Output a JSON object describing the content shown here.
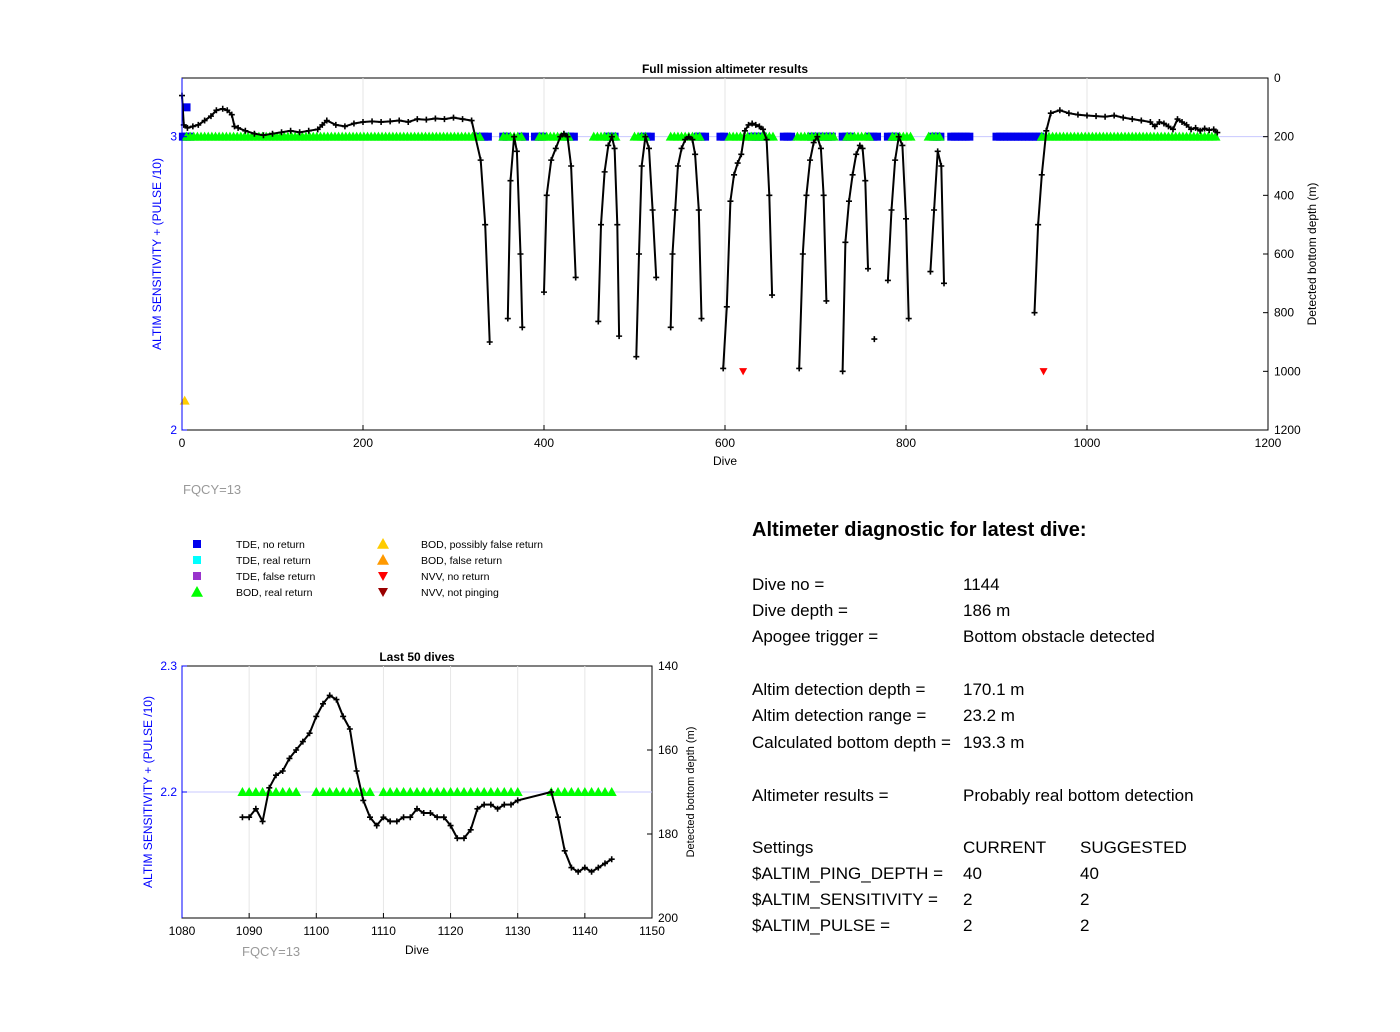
{
  "colors": {
    "blue_axis": "#0000ff",
    "black": "#000000",
    "tde_no_return": "#0000ee",
    "tde_real_return": "#00ffff",
    "tde_false_return": "#9933cc",
    "bod_real_return": "#00ff00",
    "bod_possibly_false": "#ffcc00",
    "bod_false": "#ff9900",
    "nvv_no_return": "#ff0000",
    "nvv_not_pinging": "#990000",
    "fqcy_gray": "#999999",
    "grid": "#e6e6e6",
    "ref_line": "#c8c8ff"
  },
  "main": {
    "fqcy_label": "FQCY=13"
  },
  "legend": [
    {
      "label": "TDE, no return",
      "marker": "square",
      "color": "tde_no_return"
    },
    {
      "label": "TDE, real return",
      "marker": "square",
      "color": "tde_real_return"
    },
    {
      "label": "TDE, false return",
      "marker": "square",
      "color": "tde_false_return"
    },
    {
      "label": "BOD, real return",
      "marker": "triangle-up",
      "color": "bod_real_return"
    },
    {
      "label": "BOD, possibly false return",
      "marker": "triangle-up",
      "color": "bod_possibly_false"
    },
    {
      "label": "BOD, false return",
      "marker": "triangle-up",
      "color": "bod_false"
    },
    {
      "label": "NVV, no return",
      "marker": "triangle-down",
      "color": "nvv_no_return"
    },
    {
      "label": "NVV, not pinging",
      "marker": "triangle-down",
      "color": "nvv_not_pinging"
    }
  ],
  "inset": {
    "fqcy_label": "FQCY=13"
  },
  "diagnostic": {
    "heading": "Altimeter diagnostic for latest dive:",
    "dive_no_label": "Dive no =",
    "dive_no_value": "1144",
    "dive_depth_label": "Dive depth =",
    "dive_depth_value": "186 m",
    "apogee_label": "Apogee trigger =",
    "apogee_value": "Bottom obstacle detected",
    "det_depth_label": "Altim detection depth =",
    "det_depth_value": "170.1 m",
    "det_range_label": "Altim detection range =",
    "det_range_value": "23.2 m",
    "calc_depth_label": "Calculated bottom depth =",
    "calc_depth_value": "193.3 m",
    "results_label": "Altimeter results =",
    "results_value": "Probably real bottom detection",
    "settings_label": "Settings",
    "current_label": "CURRENT",
    "suggested_label": "SUGGESTED",
    "ping_label": "$ALTIM_PING_DEPTH =",
    "ping_current": "40",
    "ping_suggested": "40",
    "sens_label": "$ALTIM_SENSITIVITY =",
    "sens_current": "2",
    "sens_suggested": "2",
    "pulse_label": "$ALTIM_PULSE =",
    "pulse_current": "2",
    "pulse_suggested": "2"
  },
  "chart_data": [
    {
      "type": "scatter",
      "title": "Full mission altimeter results",
      "xlabel": "Dive",
      "ylabel": "ALTIM SENSITIVITY + (PULSE /10)",
      "y2label": "Detected bottom depth (m)",
      "xlim": [
        0,
        1200
      ],
      "ylim": [
        2,
        3.2
      ],
      "y2lim": [
        0,
        1200
      ],
      "y2_reversed": true,
      "xticks": [
        0,
        200,
        400,
        600,
        800,
        1000,
        1200
      ],
      "yticks": [
        2,
        3
      ],
      "y2ticks": [
        0,
        200,
        400,
        600,
        800,
        1000,
        1200
      ],
      "reference_lines": [
        3
      ],
      "grid": true,
      "bottom_depth_line": [
        [
          0,
          60
        ],
        [
          2,
          160
        ],
        [
          6,
          170
        ],
        [
          12,
          165
        ],
        [
          18,
          160
        ],
        [
          25,
          145
        ],
        [
          32,
          130
        ],
        [
          38,
          110
        ],
        [
          45,
          105
        ],
        [
          50,
          110
        ],
        [
          55,
          125
        ],
        [
          58,
          165
        ],
        [
          62,
          170
        ],
        [
          70,
          180
        ],
        [
          80,
          190
        ],
        [
          90,
          195
        ],
        [
          100,
          190
        ],
        [
          110,
          185
        ],
        [
          120,
          180
        ],
        [
          130,
          185
        ],
        [
          140,
          180
        ],
        [
          150,
          175
        ],
        [
          155,
          160
        ],
        [
          160,
          145
        ],
        [
          170,
          160
        ],
        [
          180,
          165
        ],
        [
          190,
          155
        ],
        [
          200,
          150
        ],
        [
          210,
          148
        ],
        [
          220,
          150
        ],
        [
          230,
          148
        ],
        [
          240,
          145
        ],
        [
          250,
          150
        ],
        [
          260,
          140
        ],
        [
          270,
          142
        ],
        [
          280,
          138
        ],
        [
          290,
          140
        ],
        [
          300,
          135
        ],
        [
          310,
          140
        ],
        [
          320,
          145
        ],
        [
          330,
          280
        ],
        [
          335,
          500
        ],
        [
          340,
          900
        ],
        [
          360,
          820
        ],
        [
          363,
          350
        ],
        [
          367,
          200
        ],
        [
          370,
          250
        ],
        [
          374,
          600
        ],
        [
          376,
          850
        ],
        [
          400,
          730
        ],
        [
          403,
          400
        ],
        [
          408,
          280
        ],
        [
          413,
          240
        ],
        [
          418,
          200
        ],
        [
          422,
          190
        ],
        [
          426,
          200
        ],
        [
          430,
          300
        ],
        [
          435,
          680
        ],
        [
          460,
          830
        ],
        [
          463,
          500
        ],
        [
          467,
          320
        ],
        [
          471,
          230
        ],
        [
          475,
          200
        ],
        [
          478,
          240
        ],
        [
          481,
          500
        ],
        [
          483,
          880
        ],
        [
          502,
          950
        ],
        [
          505,
          600
        ],
        [
          508,
          300
        ],
        [
          512,
          200
        ],
        [
          516,
          240
        ],
        [
          520,
          450
        ],
        [
          524,
          680
        ],
        [
          540,
          850
        ],
        [
          542,
          600
        ],
        [
          545,
          450
        ],
        [
          548,
          300
        ],
        [
          552,
          240
        ],
        [
          556,
          210
        ],
        [
          560,
          200
        ],
        [
          564,
          210
        ],
        [
          567,
          260
        ],
        [
          571,
          450
        ],
        [
          574,
          820
        ],
        [
          598,
          990
        ],
        [
          602,
          780
        ],
        [
          606,
          420
        ],
        [
          610,
          330
        ],
        [
          614,
          290
        ],
        [
          618,
          260
        ],
        [
          622,
          180
        ],
        [
          626,
          160
        ],
        [
          630,
          155
        ],
        [
          634,
          160
        ],
        [
          638,
          165
        ],
        [
          642,
          175
        ],
        [
          646,
          210
        ],
        [
          649,
          400
        ],
        [
          652,
          740
        ],
        [
          682,
          990
        ],
        [
          686,
          600
        ],
        [
          690,
          400
        ],
        [
          694,
          280
        ],
        [
          698,
          220
        ],
        [
          702,
          200
        ],
        [
          706,
          240
        ],
        [
          709,
          400
        ],
        [
          712,
          760
        ],
        [
          730,
          1000
        ],
        [
          733,
          560
        ],
        [
          737,
          420
        ],
        [
          741,
          330
        ],
        [
          745,
          260
        ],
        [
          749,
          230
        ],
        [
          752,
          240
        ],
        [
          755,
          350
        ],
        [
          758,
          650
        ],
        [
          780,
          690
        ],
        [
          784,
          450
        ],
        [
          788,
          280
        ],
        [
          792,
          200
        ],
        [
          796,
          230
        ],
        [
          800,
          480
        ],
        [
          803,
          820
        ],
        [
          827,
          660
        ],
        [
          831,
          450
        ],
        [
          835,
          250
        ],
        [
          839,
          300
        ],
        [
          842,
          700
        ],
        [
          942,
          800
        ],
        [
          946,
          500
        ],
        [
          950,
          330
        ],
        [
          955,
          180
        ],
        [
          960,
          120
        ],
        [
          970,
          110
        ],
        [
          980,
          120
        ],
        [
          990,
          125
        ],
        [
          1000,
          128
        ],
        [
          1010,
          130
        ],
        [
          1020,
          132
        ],
        [
          1030,
          128
        ],
        [
          1040,
          135
        ],
        [
          1050,
          140
        ],
        [
          1060,
          145
        ],
        [
          1070,
          150
        ],
        [
          1075,
          165
        ],
        [
          1080,
          150
        ],
        [
          1085,
          155
        ],
        [
          1090,
          165
        ],
        [
          1095,
          175
        ],
        [
          1100,
          140
        ],
        [
          1105,
          150
        ],
        [
          1110,
          160
        ],
        [
          1115,
          175
        ],
        [
          1120,
          170
        ],
        [
          1125,
          180
        ],
        [
          1130,
          172
        ],
        [
          1135,
          178
        ],
        [
          1140,
          175
        ],
        [
          1144,
          186
        ]
      ],
      "isolated_points": [
        [
          765,
          890
        ]
      ],
      "tde_no_return_segments": [
        [
          1,
          12
        ],
        [
          330,
          340
        ],
        [
          355,
          360
        ],
        [
          375,
          380
        ],
        [
          390,
          400
        ],
        [
          425,
          435
        ],
        [
          470,
          480
        ],
        [
          510,
          520
        ],
        [
          570,
          580
        ],
        [
          595,
          600
        ],
        [
          630,
          645
        ],
        [
          665,
          675
        ],
        [
          695,
          705
        ],
        [
          710,
          720
        ],
        [
          730,
          740
        ],
        [
          760,
          770
        ],
        [
          780,
          790
        ],
        [
          830,
          840
        ],
        [
          850,
          870
        ],
        [
          900,
          950
        ]
      ],
      "bod_real_return_segments": [
        [
          5,
          330
        ],
        [
          355,
          375
        ],
        [
          395,
          430
        ],
        [
          455,
          480
        ],
        [
          500,
          515
        ],
        [
          540,
          575
        ],
        [
          605,
          655
        ],
        [
          680,
          720
        ],
        [
          735,
          760
        ],
        [
          785,
          805
        ],
        [
          825,
          840
        ],
        [
          950,
          1144
        ]
      ],
      "tde_no_return_isolated": [
        [
          5,
          3.1
        ]
      ],
      "bod_possibly_false_isolated": [
        [
          3,
          2.1
        ]
      ],
      "nvv_no_return_isolated": [
        [
          620,
          1000
        ],
        [
          952,
          1000
        ]
      ]
    },
    {
      "type": "scatter",
      "title": "Last 50 dives",
      "xlabel": "Dive",
      "ylabel": "ALTIM SENSITIVITY + (PULSE /10)",
      "y2label": "Detected bottom depth (m)",
      "xlim": [
        1080,
        1150
      ],
      "ylim": [
        2.1,
        2.3
      ],
      "y2lim": [
        140,
        200
      ],
      "y2_reversed": true,
      "xticks": [
        1080,
        1090,
        1100,
        1110,
        1120,
        1130,
        1140,
        1150
      ],
      "yticks": [
        2.2,
        2.3
      ],
      "y2ticks": [
        140,
        160,
        180,
        200
      ],
      "reference_lines": [
        2.2
      ],
      "grid": true,
      "bottom_depth_line": [
        [
          1089,
          176
        ],
        [
          1090,
          176
        ],
        [
          1091,
          174
        ],
        [
          1092,
          177
        ],
        [
          1093,
          169
        ],
        [
          1094,
          166
        ],
        [
          1095,
          165
        ],
        [
          1096,
          162
        ],
        [
          1097,
          160
        ],
        [
          1098,
          158
        ],
        [
          1099,
          156
        ],
        [
          1100,
          152
        ],
        [
          1101,
          149
        ],
        [
          1102,
          147
        ],
        [
          1103,
          148
        ],
        [
          1104,
          152
        ],
        [
          1105,
          155
        ],
        [
          1106,
          165
        ],
        [
          1107,
          172
        ],
        [
          1108,
          176
        ],
        [
          1109,
          178
        ],
        [
          1110,
          176
        ],
        [
          1111,
          177
        ],
        [
          1112,
          177
        ],
        [
          1113,
          176
        ],
        [
          1114,
          176
        ],
        [
          1115,
          174
        ],
        [
          1116,
          175
        ],
        [
          1117,
          175
        ],
        [
          1118,
          176
        ],
        [
          1119,
          176
        ],
        [
          1120,
          178
        ],
        [
          1121,
          181
        ],
        [
          1122,
          181
        ],
        [
          1123,
          179
        ],
        [
          1124,
          174
        ],
        [
          1125,
          173
        ],
        [
          1126,
          173
        ],
        [
          1127,
          174
        ],
        [
          1128,
          173
        ],
        [
          1129,
          173
        ],
        [
          1130,
          172
        ],
        [
          1135,
          170
        ],
        [
          1136,
          176
        ],
        [
          1137,
          184
        ],
        [
          1138,
          188
        ],
        [
          1139,
          189
        ],
        [
          1140,
          188
        ],
        [
          1141,
          189
        ],
        [
          1142,
          188
        ],
        [
          1143,
          187
        ],
        [
          1144,
          186
        ]
      ],
      "bod_real_return_segments": [
        [
          1089,
          1097
        ],
        [
          1100,
          1108
        ],
        [
          1110,
          1130
        ],
        [
          1135,
          1144
        ]
      ]
    }
  ]
}
